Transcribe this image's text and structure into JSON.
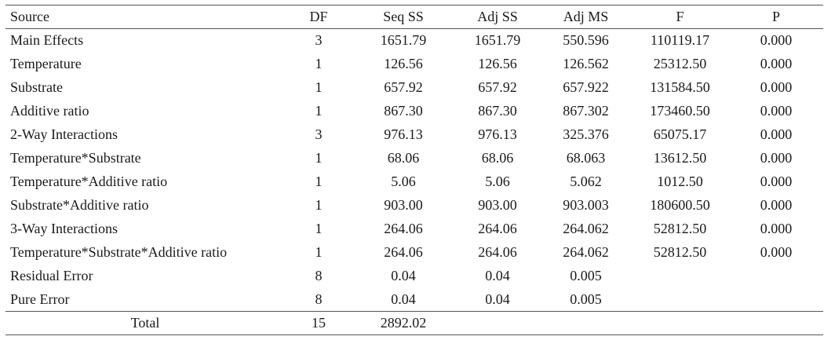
{
  "table": {
    "headers": [
      "Source",
      "DF",
      "Seq SS",
      "Adj SS",
      "Adj MS",
      "F",
      "P"
    ],
    "rows": [
      [
        "Main Effects",
        "3",
        "1651.79",
        "1651.79",
        "550.596",
        "110119.17",
        "0.000"
      ],
      [
        "Temperature",
        "1",
        "126.56",
        "126.56",
        "126.562",
        "25312.50",
        "0.000"
      ],
      [
        "Substrate",
        "1",
        "657.92",
        "657.92",
        "657.922",
        "131584.50",
        "0.000"
      ],
      [
        "Additive ratio",
        "1",
        "867.30",
        "867.30",
        "867.302",
        "173460.50",
        "0.000"
      ],
      [
        "2-Way Interactions",
        "3",
        "976.13",
        "976.13",
        "325.376",
        "65075.17",
        "0.000"
      ],
      [
        "Temperature*Substrate",
        "1",
        "68.06",
        "68.06",
        "68.063",
        "13612.50",
        "0.000"
      ],
      [
        "Temperature*Additive ratio",
        "1",
        "5.06",
        "5.06",
        "5.062",
        "1012.50",
        "0.000"
      ],
      [
        "Substrate*Additive ratio",
        "1",
        "903.00",
        "903.00",
        "903.003",
        "180600.50",
        "0.000"
      ],
      [
        "3-Way Interactions",
        "1",
        "264.06",
        "264.06",
        "264.062",
        "52812.50",
        "0.000"
      ],
      [
        "Temperature*Substrate*Additive ratio",
        "1",
        "264.06",
        "264.06",
        "264.062",
        "52812.50",
        "0.000"
      ],
      [
        "Residual Error",
        "8",
        "0.04",
        "0.04",
        "0.005",
        "",
        ""
      ],
      [
        "Pure Error",
        "8",
        "0.04",
        "0.04",
        "0.005",
        "",
        ""
      ]
    ],
    "total": [
      "Total",
      "15",
      "2892.02",
      "",
      "",
      "",
      ""
    ]
  }
}
